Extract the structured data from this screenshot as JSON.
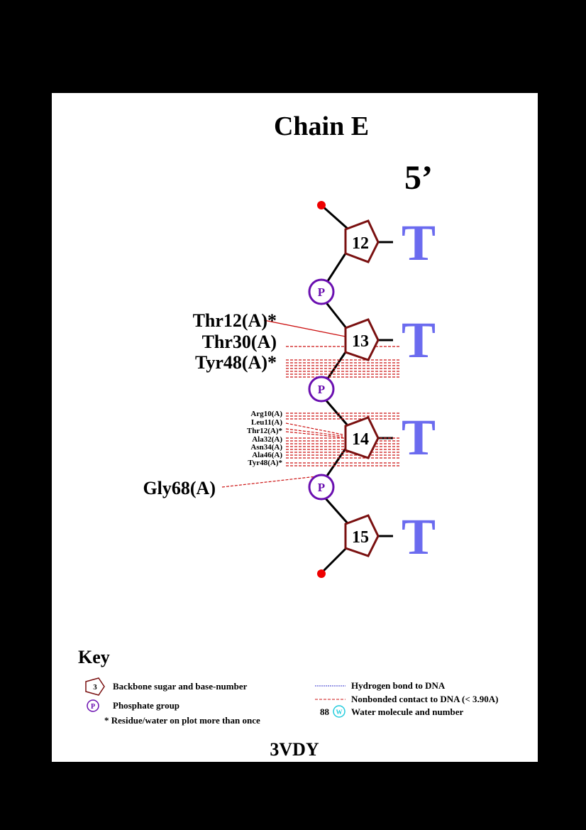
{
  "title": "Chain E",
  "end_label": "5’",
  "pdb_id": "3VDY",
  "colors": {
    "background": "#000000",
    "page": "#ffffff",
    "sugar": "#7a1010",
    "phosphate": "#6a0fb0",
    "base": "#6b6bef",
    "contact": "#cc1111",
    "hbond": "#3333cc",
    "water": "#22ccdd",
    "terminal_dot": "#ee0000"
  },
  "nucleotides": [
    {
      "number": "12",
      "base": "T"
    },
    {
      "number": "13",
      "base": "T"
    },
    {
      "number": "14",
      "base": "T"
    },
    {
      "number": "15",
      "base": "T"
    }
  ],
  "phosphate_label": "P",
  "residues_large": [
    "Thr12(A)*",
    "Thr30(A)",
    "Tyr48(A)*",
    "Gly68(A)"
  ],
  "residues_small": [
    "Arg10(A)",
    "Leu11(A)",
    "Thr12(A)*",
    "Ala32(A)",
    "Asn34(A)",
    "Ala46(A)",
    "Tyr48(A)*"
  ],
  "key": {
    "title": "Key",
    "sugar_icon_label": "3",
    "sugar_text": "Backbone sugar and base-number",
    "phosphate_icon_label": "P",
    "phosphate_text": "Phosphate group",
    "asterisk_text": "* Residue/water on plot more than once",
    "hbond_text": "Hydrogen bond to DNA",
    "nonbonded_text": "Nonbonded contact to DNA (< 3.90A)",
    "water_number": "88",
    "water_icon_label": "W",
    "water_text": "Water molecule and number"
  }
}
